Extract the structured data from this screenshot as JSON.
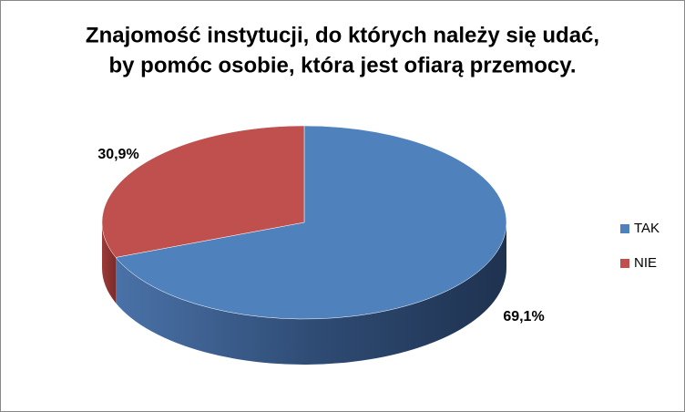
{
  "chart_data": {
    "type": "pie",
    "title": [
      "Znajomość instytucji, do których należy się udać,",
      "by pomóc osobie, która jest ofiarą przemocy."
    ],
    "categories": [
      "TAK",
      "NIE"
    ],
    "values": [
      69.1,
      30.9
    ],
    "value_labels": [
      "69,1%",
      "30,9%"
    ],
    "colors": [
      "#4f81bd",
      "#c0504d"
    ],
    "legend": "right"
  }
}
